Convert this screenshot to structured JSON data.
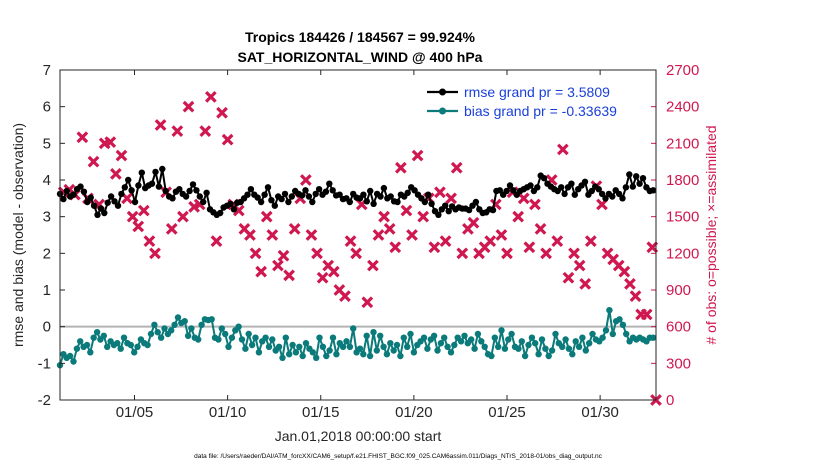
{
  "chart_data": {
    "type": "line",
    "title_line1": "Tropics 184426 / 184567 = 99.924%",
    "title_line2": "SAT_HORIZONTAL_WIND @ 400 hPa",
    "xlabel": "Jan.01,2018 00:00:00 start",
    "ylabel_left": "rmse and bias (model - observation)",
    "ylabel_right": "# of obs: o=possible; ×=assimilated",
    "footer": "data file: /Users/raeder/DAI/ATM_forcXX/CAM6_setup/f.e21.FHIST_BGC.f09_025.CAM6assim.011/Diags_NTrS_2018-01/obs_diag_output.nc",
    "x_range": [
      1,
      33
    ],
    "ylim_left": [
      -2,
      7
    ],
    "ylim_right": [
      0,
      2700
    ],
    "x_ticks": [
      5,
      10,
      15,
      20,
      25,
      30
    ],
    "x_tick_labels": [
      "01/05",
      "01/10",
      "01/15",
      "01/20",
      "01/25",
      "01/30"
    ],
    "y_ticks_left": [
      -2,
      -1,
      0,
      1,
      2,
      3,
      4,
      5,
      6,
      7
    ],
    "y_ticks_right": [
      0,
      300,
      600,
      900,
      1200,
      1500,
      1800,
      2100,
      2400,
      2700
    ],
    "zero_line": 0,
    "colors": {
      "rmse": "#000000",
      "bias": "#0a7a7a",
      "obs": "#d01850",
      "legend_text": "#1a3fd8"
    },
    "series": [
      {
        "name": "rmse grand pr = 3.5809",
        "values": [
          3.62,
          3.48,
          3.7,
          3.55,
          3.6,
          3.75,
          3.82,
          3.68,
          3.4,
          3.52,
          3.3,
          3.05,
          3.22,
          3.1,
          3.38,
          3.55,
          3.42,
          3.3,
          3.62,
          3.8,
          4.0,
          3.72,
          3.4,
          3.85,
          4.2,
          3.78,
          3.85,
          3.9,
          4.22,
          3.82,
          4.3,
          3.7,
          3.55,
          3.5,
          3.68,
          3.75,
          3.62,
          3.55,
          3.7,
          3.88,
          3.72,
          3.55,
          3.4,
          3.65,
          3.2,
          3.12,
          3.05,
          3.1,
          3.25,
          3.3,
          3.35,
          3.2,
          3.38,
          3.4,
          3.5,
          3.6,
          3.75,
          3.6,
          3.52,
          3.4,
          3.6,
          3.8,
          3.45,
          3.3,
          3.55,
          3.48,
          3.62,
          3.4,
          3.55,
          3.7,
          3.62,
          3.58,
          3.72,
          3.55,
          3.4,
          3.62,
          3.75,
          3.6,
          3.68,
          3.9,
          3.72,
          3.58,
          3.6,
          3.48,
          3.5,
          3.4,
          3.62,
          3.52,
          3.5,
          3.6,
          3.42,
          3.7,
          3.35,
          3.62,
          3.55,
          3.78,
          3.5,
          3.55,
          3.42,
          3.4,
          3.6,
          3.55,
          3.65,
          3.8,
          3.72,
          3.6,
          3.5,
          3.4,
          3.6,
          3.35,
          3.15,
          3.05,
          3.2,
          3.3,
          3.15,
          3.28,
          3.2,
          3.25,
          3.22,
          3.22,
          3.18,
          3.3,
          3.4,
          3.2,
          3.1,
          3.12,
          3.2,
          3.18,
          3.7,
          3.72,
          3.6,
          3.7,
          3.85,
          3.72,
          3.6,
          3.7,
          3.75,
          3.8,
          3.85,
          3.7,
          3.8,
          4.12,
          4.05,
          3.9,
          3.82,
          3.75,
          3.7,
          3.8,
          3.62,
          3.8,
          3.9,
          3.6,
          3.75,
          3.85,
          3.95,
          3.6,
          3.7,
          3.82,
          3.75,
          3.62,
          3.5,
          3.62,
          3.55,
          3.72,
          3.62,
          3.5,
          3.8,
          4.15,
          3.82,
          4.1,
          3.9,
          4.05,
          3.8,
          3.7,
          3.72
        ],
        "marker": "filled-circle"
      },
      {
        "name": "bias grand pr = -0.33639",
        "values": [
          -1.05,
          -0.75,
          -0.85,
          -0.8,
          -0.95,
          -0.6,
          -0.4,
          -0.55,
          -0.5,
          -0.7,
          -0.3,
          -0.15,
          -0.35,
          -0.25,
          -0.55,
          -0.4,
          -0.5,
          -0.45,
          -0.6,
          -0.3,
          -0.45,
          -0.5,
          -0.7,
          -0.55,
          -0.35,
          -0.45,
          -0.5,
          -0.2,
          0.05,
          -0.15,
          -0.3,
          -0.05,
          -0.2,
          -0.1,
          0.05,
          0.25,
          0.1,
          0.15,
          -0.25,
          -0.05,
          -0.3,
          -0.35,
          0.05,
          0.2,
          0.18,
          0.2,
          -0.3,
          -0.35,
          -0.05,
          -0.2,
          -0.55,
          -0.3,
          -0.1,
          0.0,
          -0.35,
          -0.6,
          -0.2,
          -0.5,
          -0.3,
          -0.7,
          -0.4,
          -0.3,
          -0.55,
          -0.35,
          -0.65,
          -0.55,
          -0.85,
          -0.3,
          -0.75,
          -0.5,
          -0.7,
          -0.55,
          -0.8,
          -0.45,
          -0.6,
          -0.7,
          -0.85,
          -0.3,
          -0.55,
          -0.8,
          -0.65,
          -0.3,
          -0.75,
          -0.45,
          -0.55,
          -0.4,
          -0.55,
          -0.05,
          -0.7,
          -0.6,
          -0.75,
          -0.25,
          -0.8,
          -0.15,
          -0.65,
          -0.25,
          -0.55,
          -0.75,
          -0.45,
          -0.65,
          -0.5,
          -0.8,
          -0.3,
          -0.55,
          -0.2,
          -0.7,
          -0.5,
          -0.4,
          -0.3,
          -0.6,
          -0.35,
          -0.25,
          -0.65,
          -0.45,
          -0.3,
          -0.55,
          -0.7,
          -0.5,
          -0.3,
          -0.4,
          -0.25,
          -0.45,
          -0.35,
          -0.6,
          -0.2,
          -0.4,
          -0.55,
          -0.75,
          -0.8,
          -0.3,
          -0.55,
          -0.1,
          -0.6,
          -0.35,
          -0.2,
          -0.55,
          -0.6,
          -0.4,
          -0.8,
          -0.5,
          -0.3,
          -0.45,
          -0.75,
          -0.35,
          -0.6,
          -0.8,
          -0.65,
          -0.2,
          -0.45,
          -0.55,
          -0.35,
          -0.6,
          -0.75,
          -0.4,
          -0.55,
          -0.3,
          -0.65,
          -0.45,
          -0.2,
          -0.35,
          -0.4,
          -0.3,
          -0.1,
          0.45,
          -0.2,
          0.15,
          0.2,
          0.05,
          -0.2,
          -0.4,
          -0.3,
          -0.35,
          -0.3,
          -0.35,
          -0.4,
          -0.3,
          -0.3
        ],
        "marker": "filled-circle"
      }
    ],
    "obs_count_series": {
      "name": "observation counts",
      "x": [
        1.2,
        1.5,
        1.8,
        2.2,
        2.5,
        2.8,
        3.1,
        3.4,
        3.7,
        4.0,
        4.3,
        4.6,
        4.9,
        5.2,
        5.5,
        5.8,
        6.1,
        6.4,
        6.7,
        7.0,
        7.3,
        7.6,
        7.9,
        8.2,
        8.5,
        8.8,
        9.1,
        9.4,
        9.7,
        10.0,
        10.3,
        10.6,
        10.9,
        11.2,
        11.5,
        11.8,
        12.1,
        12.4,
        12.7,
        13.0,
        13.3,
        13.6,
        13.9,
        14.2,
        14.5,
        14.8,
        15.1,
        15.4,
        15.7,
        16.0,
        16.3,
        16.6,
        16.9,
        17.2,
        17.5,
        17.8,
        18.1,
        18.4,
        18.7,
        19.0,
        19.3,
        19.6,
        19.9,
        20.2,
        20.5,
        20.8,
        21.1,
        21.4,
        21.7,
        22.0,
        22.3,
        22.6,
        22.9,
        23.2,
        23.5,
        23.8,
        24.1,
        24.4,
        24.7,
        25.0,
        25.3,
        25.6,
        25.9,
        26.2,
        26.5,
        26.8,
        27.1,
        27.4,
        27.7,
        28.0,
        28.3,
        28.6,
        28.9,
        29.2,
        29.5,
        29.8,
        30.1,
        30.4,
        30.7,
        31.0,
        31.3,
        31.6,
        31.9,
        32.2,
        32.5,
        32.8
      ],
      "values": [
        1700,
        1720,
        1680,
        2150,
        1650,
        1950,
        1600,
        2100,
        2110,
        1850,
        2000,
        1650,
        1500,
        1420,
        1550,
        1300,
        1200,
        2250,
        1700,
        1400,
        2200,
        1500,
        2400,
        1580,
        1600,
        2200,
        2480,
        1300,
        2350,
        2130,
        1600,
        1550,
        1400,
        1350,
        1200,
        1050,
        1500,
        1350,
        1100,
        1180,
        1020,
        1400,
        1650,
        1800,
        1350,
        1200,
        1000,
        1100,
        1050,
        900,
        850,
        1300,
        1200,
        1600,
        800,
        1100,
        1350,
        1500,
        1400,
        1250,
        1900,
        1550,
        1350,
        2000,
        1500,
        1650,
        1250,
        1700,
        1300,
        1650,
        1900,
        1200,
        1400,
        1450,
        1200,
        1250,
        1300,
        1600,
        1350,
        1200,
        1700,
        1500,
        1650,
        1250,
        1600,
        1400,
        1200,
        1800,
        1300,
        2050,
        1000,
        1200,
        1100,
        950,
        1300,
        1750,
        1600,
        1200,
        1150,
        1100,
        1050,
        950,
        850,
        700,
        700,
        1250
      ],
      "extra_point": {
        "x": 33,
        "value": 0
      }
    },
    "legend_placement": "top-right"
  }
}
